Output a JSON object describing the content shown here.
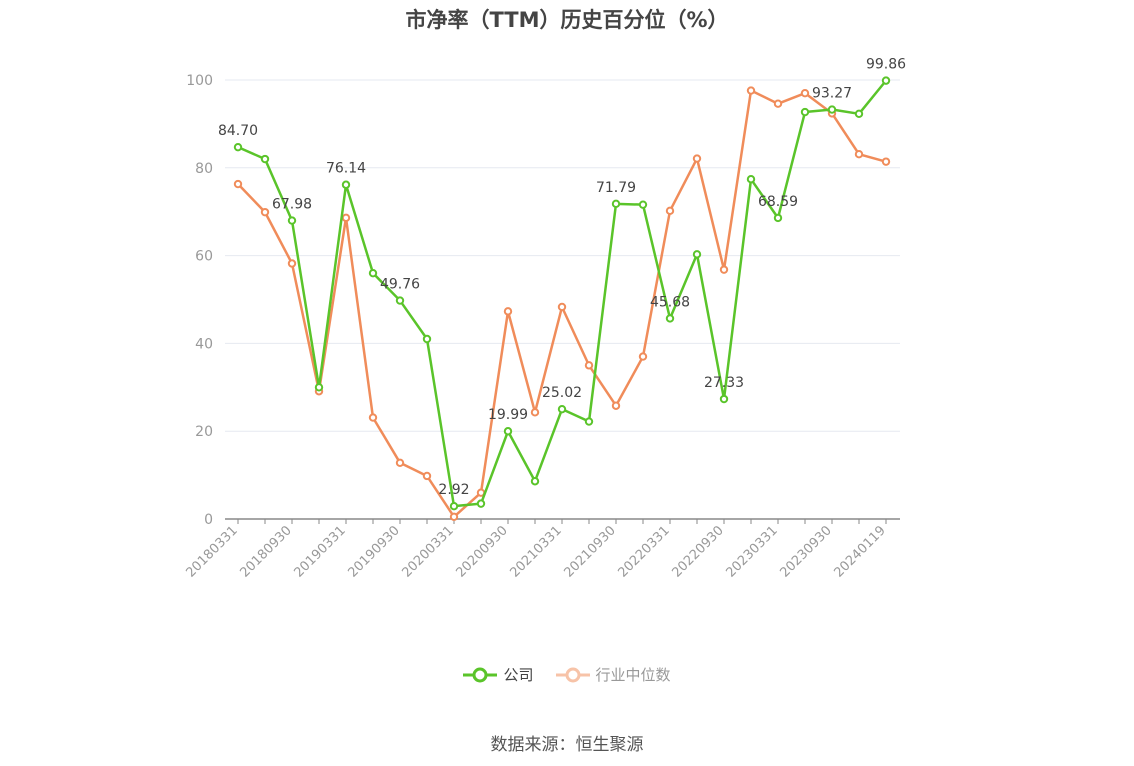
{
  "chart_data": {
    "type": "line",
    "title": "市净率（TTM）历史百分位（%）",
    "source": "数据来源：恒生聚源",
    "x": [
      "20180331",
      "20180630",
      "20180930",
      "20181231",
      "20190331",
      "20190630",
      "20190930",
      "20191231",
      "20200331",
      "20200630",
      "20200930",
      "20201231",
      "20210331",
      "20210630",
      "20210930",
      "20211231",
      "20220331",
      "20220630",
      "20220930",
      "20221231",
      "20230331",
      "20230630",
      "20230930",
      "20231231",
      "20240119"
    ],
    "x_tick_labels": [
      "20180331",
      "20180930",
      "20190331",
      "20190930",
      "20200331",
      "20200930",
      "20210331",
      "20210930",
      "20220331",
      "20220930",
      "20230331",
      "20230930",
      "20240119"
    ],
    "ylim": [
      0,
      100
    ],
    "y_ticks": [
      0,
      20,
      40,
      60,
      80,
      100
    ],
    "grid": true,
    "legend_position": "bottom",
    "series": [
      {
        "name": "公司",
        "color": "#5ac42a",
        "values": [
          84.7,
          82.0,
          67.98,
          30.0,
          76.14,
          56.0,
          49.76,
          41.0,
          2.92,
          3.5,
          19.99,
          8.6,
          25.02,
          22.2,
          71.79,
          71.6,
          45.68,
          60.3,
          27.33,
          77.4,
          68.59,
          92.7,
          93.27,
          92.3,
          99.86
        ],
        "labels": {
          "0": "84.70",
          "2": "67.98",
          "4": "76.14",
          "6": "49.76",
          "8": "2.92",
          "10": "19.99",
          "12": "25.02",
          "14": "71.79",
          "16": "45.68",
          "18": "27.33",
          "20": "68.59",
          "22": "93.27",
          "24": "99.86"
        }
      },
      {
        "name": "行业中位数",
        "color": "#f08c5a",
        "values": [
          76.3,
          69.9,
          58.2,
          29.1,
          68.6,
          23.1,
          12.8,
          9.8,
          0.5,
          6.0,
          47.3,
          24.3,
          48.3,
          35.0,
          25.8,
          37.0,
          70.2,
          82.1,
          56.8,
          97.6,
          94.6,
          97.0,
          92.4,
          83.1,
          81.4
        ],
        "labels": {}
      }
    ]
  }
}
